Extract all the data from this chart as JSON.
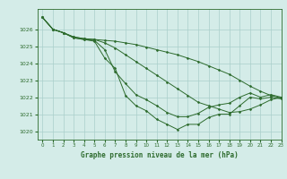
{
  "title": "Graphe pression niveau de la mer (hPa)",
  "background_color": "#d4ece8",
  "grid_color": "#aacfca",
  "line_color": "#2d6b2d",
  "marker_color": "#2d6b2d",
  "xlim": [
    -0.5,
    23
  ],
  "ylim": [
    1019.5,
    1027.2
  ],
  "yticks": [
    1020,
    1021,
    1022,
    1023,
    1024,
    1025,
    1026
  ],
  "xticks": [
    0,
    1,
    2,
    3,
    4,
    5,
    6,
    7,
    8,
    9,
    10,
    11,
    12,
    13,
    14,
    15,
    16,
    17,
    18,
    19,
    20,
    21,
    22,
    23
  ],
  "series": [
    [
      1026.7,
      1026.0,
      1025.8,
      1025.5,
      1025.4,
      1025.3,
      1024.3,
      1023.7,
      1022.1,
      1021.5,
      1021.2,
      1020.7,
      1020.4,
      1020.1,
      1020.4,
      1020.4,
      1020.8,
      1021.0,
      1021.0,
      1021.5,
      1022.0,
      1021.9,
      1022.0,
      1021.9
    ],
    [
      1026.7,
      1026.0,
      1025.8,
      1025.5,
      1025.4,
      1025.35,
      1024.8,
      1023.5,
      1022.8,
      1022.15,
      1021.85,
      1021.5,
      1021.1,
      1020.85,
      1020.85,
      1021.05,
      1021.4,
      1021.55,
      1021.65,
      1022.0,
      1022.25,
      1022.0,
      1022.15,
      1022.0
    ],
    [
      1026.7,
      1026.0,
      1025.8,
      1025.55,
      1025.45,
      1025.4,
      1025.2,
      1024.9,
      1024.5,
      1024.1,
      1023.7,
      1023.3,
      1022.9,
      1022.5,
      1022.1,
      1021.7,
      1021.5,
      1021.3,
      1021.1,
      1021.15,
      1021.3,
      1021.55,
      1021.85,
      1022.0
    ],
    [
      1026.7,
      1026.0,
      1025.8,
      1025.55,
      1025.45,
      1025.4,
      1025.35,
      1025.3,
      1025.2,
      1025.1,
      1024.95,
      1024.8,
      1024.65,
      1024.5,
      1024.3,
      1024.1,
      1023.85,
      1023.6,
      1023.35,
      1023.0,
      1022.65,
      1022.35,
      1022.1,
      1021.95
    ]
  ]
}
